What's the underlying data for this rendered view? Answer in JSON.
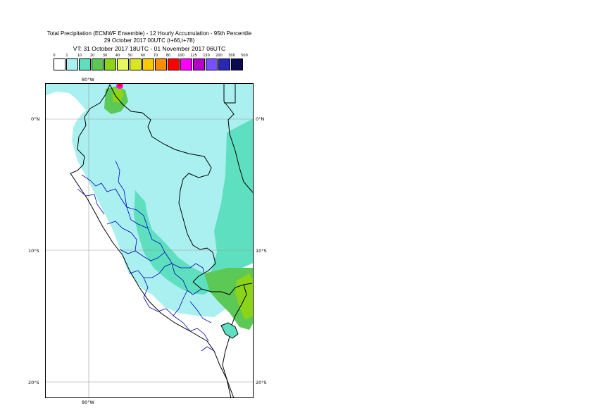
{
  "title": {
    "line1": "Total Precipitation (ECMWF Ensemble) - 12 Hourly Accumulation - 95th Percentile",
    "line2": "29 October 2017 00UTC (t+66,t+78)",
    "line3": "VT: 31 October 2017 18UTC - 01 November 2017 06UTC"
  },
  "legend": {
    "ticks": [
      "0",
      "1",
      "10",
      "20",
      "30",
      "40",
      "50",
      "60",
      "70",
      "80",
      "100",
      "125",
      "150",
      "200",
      "300",
      "500"
    ],
    "colors": [
      "#ffffff",
      "#aaf0f0",
      "#5ee0c0",
      "#5cc855",
      "#8cd418",
      "#e6f860",
      "#d6e620",
      "#ffc800",
      "#ff8c00",
      "#ff0000",
      "#ff00ff",
      "#b400c8",
      "#7850ff",
      "#2828b4",
      "#0a0a50"
    ]
  },
  "axes": {
    "lon_top": "80°W",
    "lon_bottom": "80°W",
    "lat_labels": [
      "0°N",
      "10°S",
      "20°S"
    ]
  }
}
